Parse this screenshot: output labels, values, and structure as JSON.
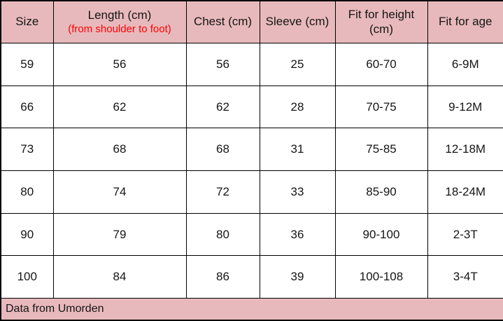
{
  "colors": {
    "header_bg": "#e8b9bc",
    "subtitle_red": "#ff0000",
    "border": "#000000",
    "cell_bg": "#ffffff",
    "text": "#151515"
  },
  "header": {
    "size": "Size",
    "length_main": "Length (cm)",
    "length_sub": "(from shoulder to foot)",
    "chest": "Chest (cm)",
    "sleeve": "Sleeve (cm)",
    "fit_height": "Fit for height (cm)",
    "fit_age": "Fit for age"
  },
  "footer": {
    "source_note": "Data from Umorden"
  },
  "chart_data": {
    "type": "table",
    "title": "",
    "columns": [
      "Size",
      "Length (cm) (from shoulder to foot)",
      "Chest (cm)",
      "Sleeve (cm)",
      "Fit for height (cm)",
      "Fit for age"
    ],
    "rows": [
      [
        "59",
        "56",
        "56",
        "25",
        "60-70",
        "6-9M"
      ],
      [
        "66",
        "62",
        "62",
        "28",
        "70-75",
        "9-12M"
      ],
      [
        "73",
        "68",
        "68",
        "31",
        "75-85",
        "12-18M"
      ],
      [
        "80",
        "74",
        "72",
        "33",
        "85-90",
        "18-24M"
      ],
      [
        "90",
        "79",
        "80",
        "36",
        "90-100",
        "2-3T"
      ],
      [
        "100",
        "84",
        "86",
        "39",
        "100-108",
        "3-4T"
      ]
    ],
    "footnote": "Data from Umorden"
  }
}
